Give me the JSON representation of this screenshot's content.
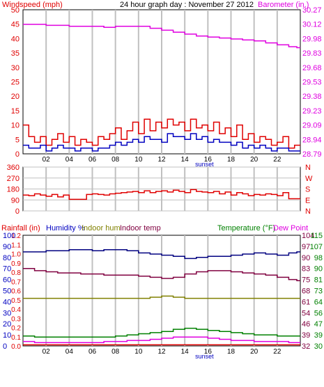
{
  "header": {
    "left_label": "Windspeed (mph)",
    "title": "24 hour graph day : November 27 2012",
    "right_label": "Barometer (in.)"
  },
  "colors": {
    "red": "#e00000",
    "blue": "#0000c0",
    "magenta": "#e000e0",
    "olive": "#808000",
    "maroon": "#800040",
    "green": "#008000",
    "grid": "#c0c0c0",
    "frame": "#000000",
    "navy": "#000080"
  },
  "x_ticks": [
    "02",
    "04",
    "06",
    "08",
    "10",
    "12",
    "14",
    "16",
    "18",
    "20",
    "22"
  ],
  "sunset_label": "sunset",
  "chart_data": [
    {
      "type": "line",
      "name": "wind-barometer",
      "x_range": [
        0,
        24
      ],
      "left_axis": {
        "label": "Windspeed (mph)",
        "ticks": [
          "0",
          "5",
          "10",
          "15",
          "20",
          "25",
          "30",
          "35",
          "40",
          "45",
          "50"
        ],
        "range": [
          0,
          50
        ]
      },
      "right_axis": {
        "label": "Barometer (in.)",
        "ticks": [
          "28.79",
          "28.94",
          "29.09",
          "29.23",
          "29.38",
          "29.53",
          "29.68",
          "29.83",
          "29.98",
          "30.12",
          "30.27"
        ],
        "range": [
          28.79,
          30.27
        ]
      },
      "series": [
        {
          "color": "red",
          "axis": "left",
          "x": [
            0,
            0.5,
            1,
            1.5,
            2,
            2.5,
            3,
            3.5,
            4,
            4.5,
            5,
            5.5,
            6,
            6.5,
            7,
            7.5,
            8,
            8.5,
            9,
            9.5,
            10,
            10.5,
            11,
            11.5,
            12,
            12.5,
            13,
            13.5,
            14,
            14.5,
            15,
            15.5,
            16,
            16.5,
            17,
            17.5,
            18,
            18.5,
            19,
            19.5,
            20,
            20.5,
            21,
            21.5,
            22,
            22.5,
            23,
            23.5
          ],
          "y": [
            10,
            6,
            4,
            6,
            3,
            5,
            7,
            4,
            6,
            3,
            5,
            4,
            3,
            6,
            5,
            7,
            9,
            5,
            8,
            11,
            7,
            12,
            8,
            11,
            9,
            12,
            10,
            11,
            8,
            12,
            9,
            10,
            8,
            11,
            7,
            9,
            6,
            10,
            5,
            7,
            4,
            6,
            5,
            3,
            4,
            6,
            2,
            3
          ]
        },
        {
          "color": "blue",
          "axis": "left",
          "x": [
            0,
            0.5,
            1,
            1.5,
            2,
            2.5,
            3,
            3.5,
            4,
            4.5,
            5,
            5.5,
            6,
            6.5,
            7,
            7.5,
            8,
            8.5,
            9,
            9.5,
            10,
            10.5,
            11,
            11.5,
            12,
            12.5,
            13,
            13.5,
            14,
            14.5,
            15,
            15.5,
            16,
            16.5,
            17,
            17.5,
            18,
            18.5,
            19,
            19.5,
            20,
            20.5,
            21,
            21.5,
            22,
            22.5,
            23,
            23.5
          ],
          "y": [
            3,
            2,
            2,
            3,
            1,
            2,
            3,
            2,
            2,
            1,
            2,
            2,
            1,
            2,
            2,
            3,
            4,
            3,
            4,
            5,
            4,
            6,
            5,
            5,
            4,
            7,
            6,
            6,
            5,
            7,
            5,
            6,
            4,
            5,
            4,
            4,
            3,
            4,
            2,
            3,
            2,
            3,
            2,
            1,
            2,
            2,
            1,
            1
          ]
        },
        {
          "color": "magenta",
          "axis": "right",
          "x": [
            0,
            1,
            2,
            3,
            4,
            5,
            6,
            7,
            8,
            9,
            10,
            11,
            12,
            13,
            14,
            15,
            16,
            17,
            18,
            19,
            20,
            21,
            22,
            23,
            23.7
          ],
          "y": [
            30.12,
            30.12,
            30.11,
            30.11,
            30.1,
            30.1,
            30.1,
            30.09,
            30.1,
            30.1,
            30.1,
            30.08,
            30.06,
            30.04,
            30.02,
            30.0,
            29.99,
            29.98,
            29.97,
            29.96,
            29.95,
            29.93,
            29.91,
            29.89,
            29.88
          ]
        }
      ]
    },
    {
      "type": "line",
      "name": "wind-direction",
      "x_range": [
        0,
        24
      ],
      "left_axis": {
        "ticks": [
          "0",
          "90",
          "180",
          "270",
          "360"
        ],
        "range": [
          0,
          360
        ]
      },
      "right_axis": {
        "ticks": [
          "N",
          "E",
          "S",
          "W",
          "N"
        ],
        "range": [
          0,
          360
        ]
      },
      "series": [
        {
          "color": "red",
          "x": [
            0,
            0.5,
            1,
            1.5,
            2,
            2.5,
            3,
            3.5,
            4,
            4.5,
            5,
            5.5,
            6,
            6.5,
            7,
            7.5,
            8,
            8.5,
            9,
            9.5,
            10,
            10.5,
            11,
            11.5,
            12,
            12.5,
            13,
            13.5,
            14,
            14.5,
            15,
            15.5,
            16,
            16.5,
            17,
            17.5,
            18,
            18.5,
            19,
            19.5,
            20,
            20.5,
            21,
            21.5,
            22,
            22.5,
            23,
            23.5
          ],
          "y": [
            130,
            125,
            140,
            130,
            120,
            135,
            115,
            130,
            95,
            95,
            95,
            135,
            140,
            135,
            130,
            140,
            145,
            150,
            155,
            160,
            150,
            165,
            150,
            160,
            165,
            155,
            170,
            160,
            150,
            175,
            160,
            155,
            150,
            160,
            140,
            155,
            130,
            150,
            140,
            125,
            135,
            130,
            140,
            135,
            125,
            150,
            100,
            100
          ]
        }
      ]
    },
    {
      "type": "line",
      "name": "temperature-humidity",
      "x_range": [
        0,
        24
      ],
      "axis_1": {
        "label": "Rainfall (in)",
        "ticks": [
          "0.0",
          "0.1",
          "0.2",
          "0.3",
          "0.4",
          "0.5",
          "0.6",
          "0.7",
          "0.8",
          "0.9",
          "1.0",
          "1.1",
          "1.2"
        ]
      },
      "axis_2": {
        "label": "Humidity %",
        "ticks": [
          "0",
          "10",
          "20",
          "30",
          "40",
          "50",
          "60",
          "70",
          "80",
          "90",
          "100"
        ],
        "range": [
          0,
          100
        ]
      },
      "axis_3": {
        "label": "Temperature (°F)",
        "ticks": [
          "32",
          "39",
          "46",
          "54",
          "61",
          "68",
          "75",
          "83",
          "90",
          "97",
          "104"
        ]
      },
      "axis_4": {
        "label": "Dew Point",
        "ticks": [
          "30",
          "39",
          "47",
          "56",
          "64",
          "73",
          "81",
          "90",
          "98",
          "107",
          "115"
        ]
      },
      "extra_labels": {
        "indoor_hum": "Indoor hum",
        "indoor_temp": "Indoor temp"
      },
      "series": [
        {
          "color": "navy",
          "x": [
            0,
            2,
            3,
            4,
            5,
            6,
            7,
            8,
            9,
            10,
            11,
            12,
            13,
            14,
            15,
            16,
            17,
            18,
            19,
            20,
            21,
            22,
            23,
            23.7
          ],
          "y": [
            85,
            86,
            86,
            87,
            87,
            86,
            87,
            87,
            86,
            84,
            83,
            82,
            81,
            79,
            80,
            81,
            81,
            82,
            83,
            84,
            83,
            82,
            84,
            85
          ]
        },
        {
          "color": "maroon",
          "x": [
            0,
            1,
            2,
            3,
            4,
            5,
            6,
            7,
            8,
            9,
            10,
            11,
            12,
            13,
            14,
            15,
            16,
            17,
            18,
            19,
            20,
            21,
            22,
            23,
            23.7
          ],
          "y": [
            70,
            68,
            67,
            66,
            66,
            65,
            65,
            64,
            64,
            64,
            63,
            62,
            61,
            62,
            65,
            67,
            68,
            68,
            67,
            66,
            65,
            64,
            62,
            60,
            59
          ]
        },
        {
          "color": "olive",
          "x": [
            0,
            2,
            4,
            6,
            8,
            10,
            11,
            12,
            13,
            14,
            16,
            18,
            20,
            22,
            23,
            23.7
          ],
          "y": [
            43,
            43,
            43,
            43,
            43,
            43,
            44,
            45,
            44,
            43,
            43,
            43,
            43,
            43,
            43,
            43
          ]
        },
        {
          "color": "green",
          "x": [
            0,
            1,
            2,
            3,
            4,
            5,
            6,
            7,
            8,
            9,
            10,
            11,
            12,
            13,
            14,
            15,
            16,
            17,
            18,
            19,
            20,
            21,
            22,
            23,
            23.7
          ],
          "y": [
            9,
            8,
            8,
            8,
            8,
            8,
            8,
            8,
            9,
            10,
            11,
            12,
            13,
            15,
            16,
            15,
            14,
            13,
            12,
            11,
            10,
            10,
            9,
            9,
            9
          ]
        },
        {
          "color": "magenta",
          "x": [
            0,
            1,
            2,
            3,
            4,
            5,
            6,
            7,
            8,
            9,
            10,
            11,
            12,
            13,
            14,
            15,
            16,
            17,
            18,
            19,
            20,
            21,
            22,
            23,
            23.7
          ],
          "y": [
            4,
            3,
            3,
            3,
            3,
            3,
            3,
            4,
            4,
            5,
            5,
            6,
            7,
            8,
            8,
            8,
            7,
            6,
            5,
            5,
            4,
            4,
            4,
            3,
            3
          ]
        },
        {
          "color": "red",
          "x": [
            0,
            24
          ],
          "y": [
            1,
            1
          ]
        }
      ]
    }
  ]
}
